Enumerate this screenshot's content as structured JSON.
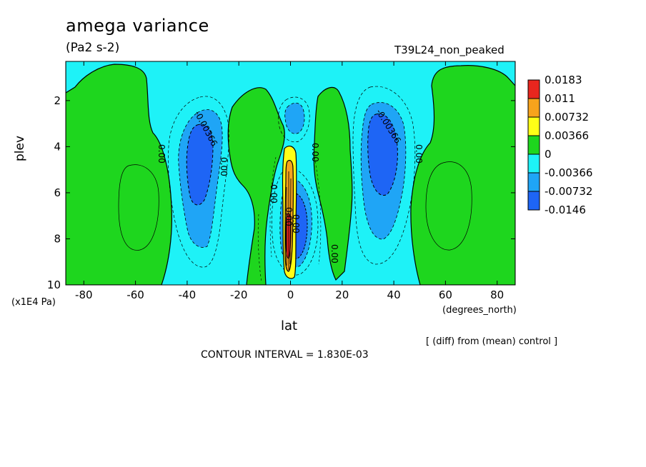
{
  "title": "amega variance",
  "units": "(Pa2 s-2)",
  "run_name": "T39L24_non_peaked",
  "diff_note": "[ (diff) from (mean) control ]",
  "contour_interval": "CONTOUR INTERVAL = 1.830E-03",
  "colors": {
    "red": "#e8261e",
    "orange": "#f7a31c",
    "yellow": "#ffff17",
    "green": "#1ed61e",
    "cyan": "#1ef2f7",
    "lightblue": "#1fa5f6",
    "blue": "#1e65f5"
  },
  "chart_data": {
    "type": "contour",
    "xlabel": "lat",
    "xunit": "(degrees_north)",
    "ylabel": "plev",
    "yunit": "(x1E4 Pa)",
    "xlim": [
      -87,
      87
    ],
    "ylim": [
      0.3,
      10
    ],
    "y_inverted": true,
    "xticks": [
      -80,
      -60,
      -40,
      -20,
      0,
      20,
      40,
      60,
      80
    ],
    "yticks": [
      2,
      4,
      6,
      8,
      10
    ],
    "colorbar": {
      "levels": [
        "0.0183",
        "0.011",
        "0.00732",
        "0.00366",
        "0",
        "-0.00366",
        "-0.00732",
        "-0.0146"
      ],
      "colors": [
        "red",
        "orange",
        "yellow",
        "green",
        "cyan",
        "lightblue",
        "blue"
      ]
    },
    "contour_labels": [
      "0.00",
      "-0.00366",
      "0.00",
      "0.00",
      "0.00",
      "0.00",
      "-0.00366",
      "0.00",
      "0.00",
      "0.00"
    ],
    "regions": [
      {
        "name": "high-lat-south-positive",
        "level": "green",
        "lat_range": [
          -87,
          -50
        ],
        "plev_range": [
          0.3,
          10
        ]
      },
      {
        "name": "high-lat-north-positive",
        "level": "green",
        "lat_range": [
          50,
          87
        ],
        "plev_range": [
          0.3,
          10
        ]
      },
      {
        "name": "south-midlat-negative",
        "level": "blue",
        "center_lat": -37,
        "center_plev": 4.5
      },
      {
        "name": "north-midlat-negative",
        "level": "blue",
        "center_lat": 37,
        "center_plev": 4
      },
      {
        "name": "equatorial-positive-max",
        "level": "red",
        "center_lat": -1,
        "center_plev": 7.5
      },
      {
        "name": "equatorial-negative",
        "level": "blue",
        "center_lat": 3,
        "center_plev": 7.5
      }
    ]
  }
}
